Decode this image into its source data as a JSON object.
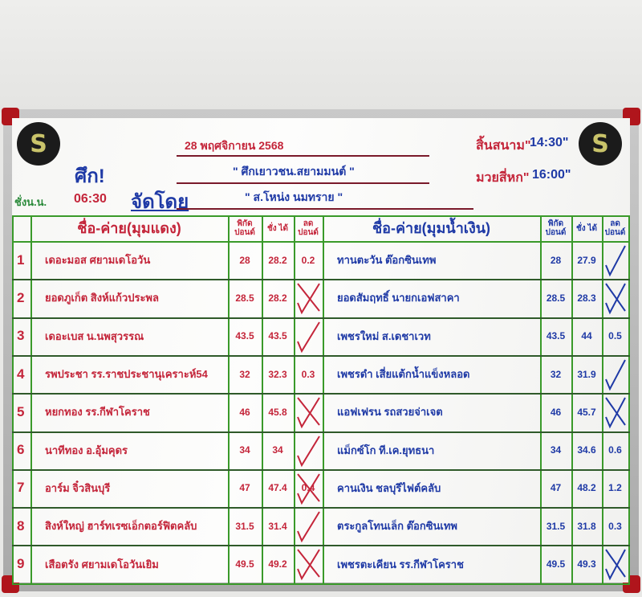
{
  "header": {
    "date": "28 พฤศจิกายน 2568",
    "event_label": "ศึก!",
    "event_name": "\" ศึกเยาวชน.สยามมนต์ \"",
    "organizer_label": "จัดโดย",
    "organizer": "\" ส.โหน่ง นมทราย \"",
    "weigh_in_label": "ชั่งน.น.",
    "weigh_in_time": "06:30",
    "field_label": "สิ้นสนาม\"",
    "field_time": "14:30\"",
    "fight_label": "มวยสี่หก\"",
    "fight_time": "16:00\"",
    "logo_letter": "S"
  },
  "columns": {
    "red_corner": "ชื่อ-ค่าย(มุมแดง)",
    "blue_corner": "ชื่อ-ค่าย(มุมน้ำเงิน)",
    "limit": "พิกัด ปอนด์",
    "weighed": "ชั่ง ได้",
    "reduce": "ลด ปอนด์"
  },
  "colors": {
    "red_ink": "#c4253a",
    "blue_ink": "#1f3aa6",
    "grid": "#3a9a2a"
  },
  "bouts": [
    {
      "no": "1",
      "red": {
        "name": "เดอะมอส  ศยามเดโอวัน",
        "limit": "28",
        "weighed": "28.2",
        "reduce": "0.2",
        "mark": ""
      },
      "blue": {
        "name": "ทานตะวัน  ต๊อกซินเทพ",
        "limit": "28",
        "weighed": "27.9",
        "reduce": "",
        "mark": "check"
      }
    },
    {
      "no": "2",
      "red": {
        "name": "ยอดภูเก็ต  สิงห์แก้วประพล",
        "limit": "28.5",
        "weighed": "28.2",
        "reduce": "",
        "mark": "cross"
      },
      "blue": {
        "name": "ยอดสัมฤทธิ์  นายกเอฟสาคา",
        "limit": "28.5",
        "weighed": "28.3",
        "reduce": "",
        "mark": "cross-check"
      }
    },
    {
      "no": "3",
      "red": {
        "name": "เดอะเบส  น.นพสุวรรณ",
        "limit": "43.5",
        "weighed": "43.5",
        "reduce": "",
        "mark": "check"
      },
      "blue": {
        "name": "เพชรใหม่  ส.เดชาเวท",
        "limit": "43.5",
        "weighed": "44",
        "reduce": "0.5",
        "mark": ""
      }
    },
    {
      "no": "4",
      "red": {
        "name": "รพประชา  รร.ราชประชานุเคราะห์54",
        "limit": "32",
        "weighed": "32.3",
        "reduce": "0.3",
        "mark": ""
      },
      "blue": {
        "name": "เพชรดำ  เสี่ยแต้กน้ำแข็งหลอด",
        "limit": "32",
        "weighed": "31.9",
        "reduce": "",
        "mark": "check"
      }
    },
    {
      "no": "5",
      "red": {
        "name": "หยกทอง  รร.กีฬาโคราช",
        "limit": "46",
        "weighed": "45.8",
        "reduce": "",
        "mark": "cross"
      },
      "blue": {
        "name": "แอฟเฟรน  รถสวยจ่าเจต",
        "limit": "46",
        "weighed": "45.7",
        "reduce": "",
        "mark": "cross-check"
      }
    },
    {
      "no": "6",
      "red": {
        "name": "นาทีทอง  อ.อุ้มคุดร",
        "limit": "34",
        "weighed": "34",
        "reduce": "",
        "mark": "check"
      },
      "blue": {
        "name": "แม็กซ์โก  ที.เค.ยุทธนา",
        "limit": "34",
        "weighed": "34.6",
        "reduce": "0.6",
        "mark": ""
      }
    },
    {
      "no": "7",
      "red": {
        "name": "อาร์ม  จิ๋วสินบุรี",
        "limit": "47",
        "weighed": "47.4",
        "reduce": "0.4",
        "mark": "cross"
      },
      "blue": {
        "name": "คานเงิน  ชลบุรีไฟต์คลับ",
        "limit": "47",
        "weighed": "48.2",
        "reduce": "1.2",
        "mark": ""
      }
    },
    {
      "no": "8",
      "red": {
        "name": "สิงห์ใหญ่  ฮาร์ทเรซเอ็กตอร์ฟิตคลับ",
        "limit": "31.5",
        "weighed": "31.4",
        "reduce": "",
        "mark": "check"
      },
      "blue": {
        "name": "ตระกูลโทนเล็ก  ต๊อกซินเทพ",
        "limit": "31.5",
        "weighed": "31.8",
        "reduce": "0.3",
        "mark": ""
      }
    },
    {
      "no": "9",
      "red": {
        "name": "เสือตรัง  ศยามเดโอวันเยิม",
        "limit": "49.5",
        "weighed": "49.2",
        "reduce": "",
        "mark": "cross"
      },
      "blue": {
        "name": "เพชรตะเคียน  รร.กีฬาโคราช",
        "limit": "49.5",
        "weighed": "49.3",
        "reduce": "",
        "mark": "cross-check"
      }
    }
  ]
}
